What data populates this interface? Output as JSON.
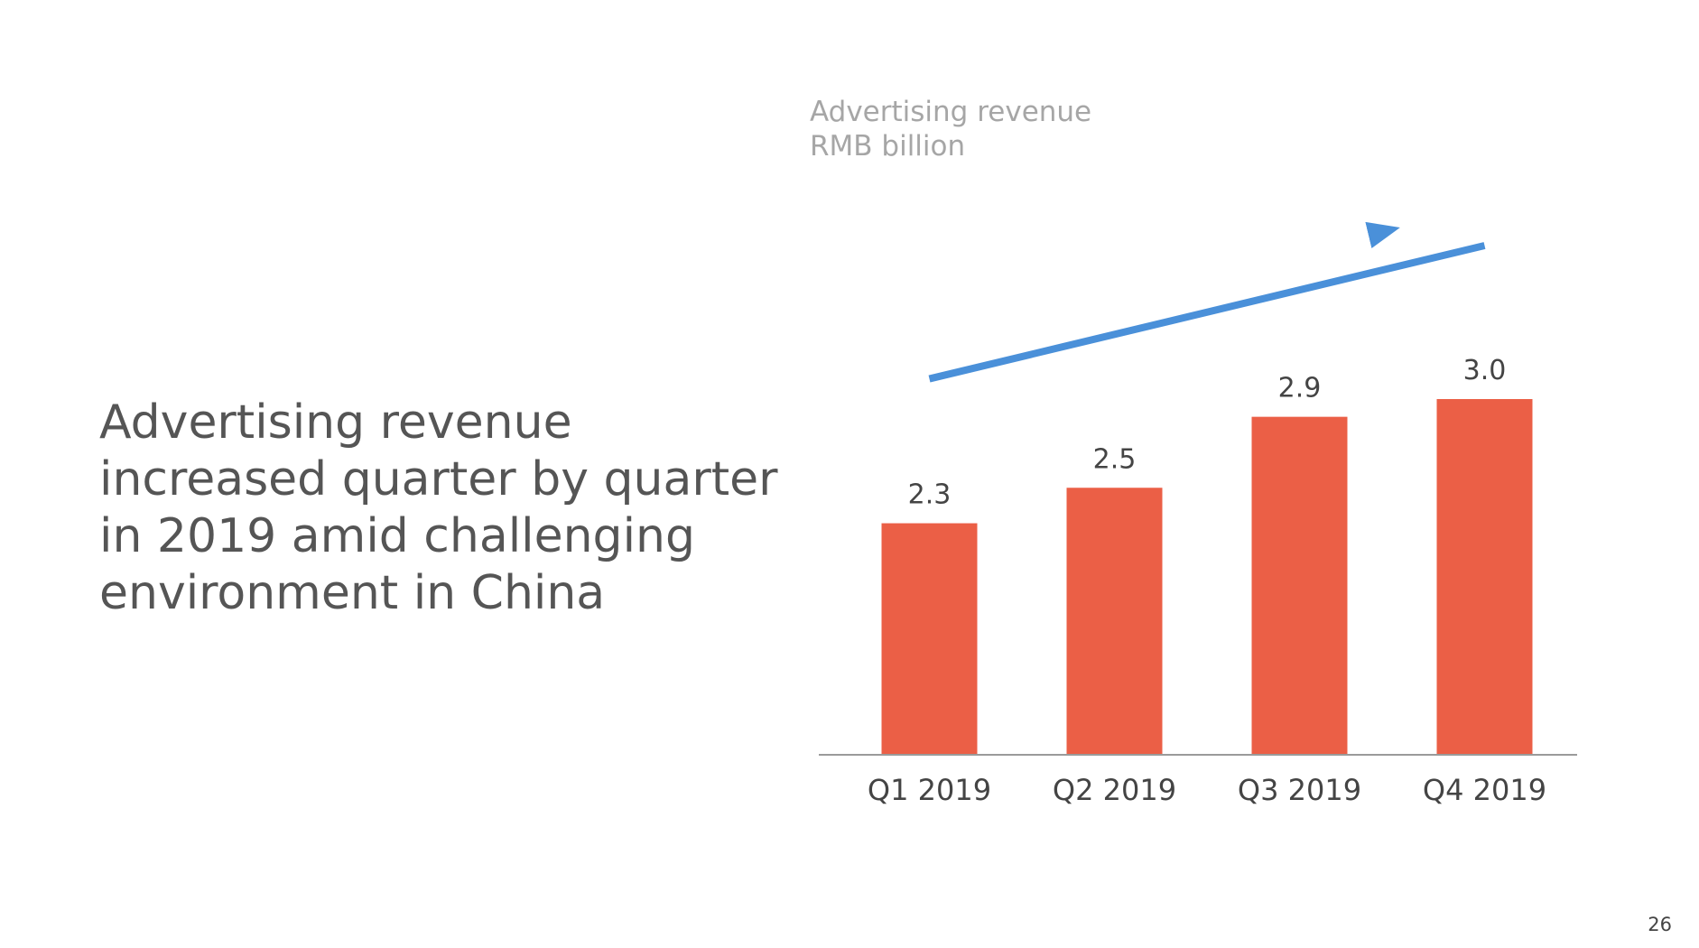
{
  "slide": {
    "headline_lines": [
      "Advertising revenue",
      "increased quarter by quarter",
      "in 2019 amid challenging",
      "environment in China"
    ],
    "page_number": "26"
  },
  "chart_data": {
    "type": "bar",
    "title_lines": [
      "Advertising revenue",
      "RMB billion"
    ],
    "categories": [
      "Q1 2019",
      "Q2 2019",
      "Q3 2019",
      "Q4 2019"
    ],
    "values": [
      2.3,
      2.5,
      2.9,
      3.0
    ],
    "value_labels": [
      "2.3",
      "2.5",
      "2.9",
      "3.0"
    ],
    "xlabel": "",
    "ylabel": "",
    "ylim": [
      1.0,
      3.0
    ],
    "grid": false,
    "legend": "none",
    "annotations": [
      {
        "type": "trend-arrow",
        "from_category": "Q1 2019",
        "to_category": "Q4 2019",
        "direction": "up"
      }
    ],
    "colors": {
      "bar": "#eb5f46",
      "arrow": "#4a90d9",
      "axis": "#9a9a9a"
    }
  }
}
